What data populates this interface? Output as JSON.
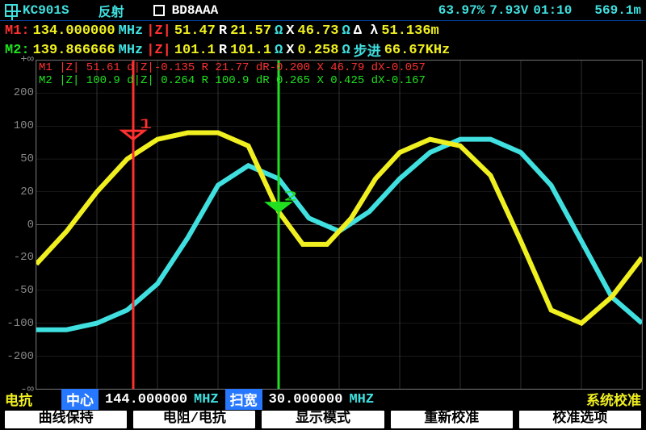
{
  "header": {
    "model": "KC901S",
    "mode": "反射",
    "callsign": "BD8AAA",
    "percent": "63.97%",
    "voltage": "7.93V",
    "time": "01:10",
    "freq_span_readout": "569.1m"
  },
  "markers": {
    "m1": {
      "label": "M1:",
      "freq": "134.000000",
      "freq_unit": "MHz",
      "z_label": "|Z|",
      "z_val": "51.47",
      "r_label": "R",
      "r_val": "21.57",
      "r_unit": "Ω",
      "x_label": "X",
      "x_val": "46.73",
      "x_unit": "Ω",
      "delta_label": "Δ λ",
      "delta_val": "51.136m",
      "color": "#ff3030"
    },
    "m2": {
      "label": "M2:",
      "freq": "139.866666",
      "freq_unit": "MHz",
      "z_label": "|Z|",
      "z_val": "101.1",
      "r_label": "R",
      "r_val": "101.1",
      "r_unit": "Ω",
      "x_label": "X",
      "x_val": "0.258",
      "x_unit": "Ω",
      "step_label": "步进",
      "step_val": "66.67KHz",
      "color": "#20e020"
    }
  },
  "trace_readout": {
    "line1": "M1 |Z|  51.61  d|Z|-0.135 R  21.77  dR-0.200 X  46.79   dX-0.057",
    "line2": "M2 |Z|  100.9  d|Z|  0.264 R 100.9   dR  0.265 X 0.425   dX-0.167"
  },
  "chart": {
    "background": "#000000",
    "grid_color": "#404040",
    "y_ticks": [
      "+∞",
      "200",
      "100",
      "50",
      "20",
      "0",
      "-20",
      "-50",
      "-100",
      "-200",
      "-∞"
    ],
    "y_tick_color": "#888888",
    "x_grid_divisions": 10,
    "y_grid_divisions": 10,
    "traces": {
      "yellow": {
        "color": "#f0f020",
        "width": 2,
        "points": [
          [
            0,
            0.62
          ],
          [
            0.05,
            0.52
          ],
          [
            0.1,
            0.4
          ],
          [
            0.15,
            0.3
          ],
          [
            0.2,
            0.24
          ],
          [
            0.25,
            0.22
          ],
          [
            0.3,
            0.22
          ],
          [
            0.35,
            0.26
          ],
          [
            0.4,
            0.46
          ],
          [
            0.44,
            0.56
          ],
          [
            0.48,
            0.56
          ],
          [
            0.52,
            0.48
          ],
          [
            0.56,
            0.36
          ],
          [
            0.6,
            0.28
          ],
          [
            0.65,
            0.24
          ],
          [
            0.7,
            0.26
          ],
          [
            0.75,
            0.35
          ],
          [
            0.8,
            0.55
          ],
          [
            0.85,
            0.76
          ],
          [
            0.9,
            0.8
          ],
          [
            0.95,
            0.72
          ],
          [
            1.0,
            0.6
          ]
        ]
      },
      "cyan": {
        "color": "#40e0e0",
        "width": 2,
        "points": [
          [
            0,
            0.82
          ],
          [
            0.05,
            0.82
          ],
          [
            0.1,
            0.8
          ],
          [
            0.15,
            0.76
          ],
          [
            0.2,
            0.68
          ],
          [
            0.25,
            0.54
          ],
          [
            0.3,
            0.38
          ],
          [
            0.35,
            0.32
          ],
          [
            0.4,
            0.36
          ],
          [
            0.45,
            0.48
          ],
          [
            0.5,
            0.52
          ],
          [
            0.55,
            0.46
          ],
          [
            0.6,
            0.36
          ],
          [
            0.65,
            0.28
          ],
          [
            0.7,
            0.24
          ],
          [
            0.75,
            0.24
          ],
          [
            0.8,
            0.28
          ],
          [
            0.85,
            0.38
          ],
          [
            0.9,
            0.55
          ],
          [
            0.95,
            0.72
          ],
          [
            1.0,
            0.8
          ]
        ]
      }
    },
    "marker_lines": {
      "m1": {
        "x": 0.16,
        "color": "#ff3030",
        "label": "1"
      },
      "m2": {
        "x": 0.4,
        "color": "#20e020",
        "label": "2"
      }
    }
  },
  "bottom": {
    "y_axis_label": "电抗",
    "center_label": "中心",
    "center_freq": "144.000000",
    "center_unit": "MHZ",
    "span_label": "扫宽",
    "span_freq": "30.000000",
    "span_unit": "MHZ",
    "cal_label": "系统校准"
  },
  "softkeys": {
    "k1": "曲线保持",
    "k2": "电阻/电抗",
    "k3": "显示模式",
    "k4": "重新校准",
    "k5": "校准选项"
  }
}
